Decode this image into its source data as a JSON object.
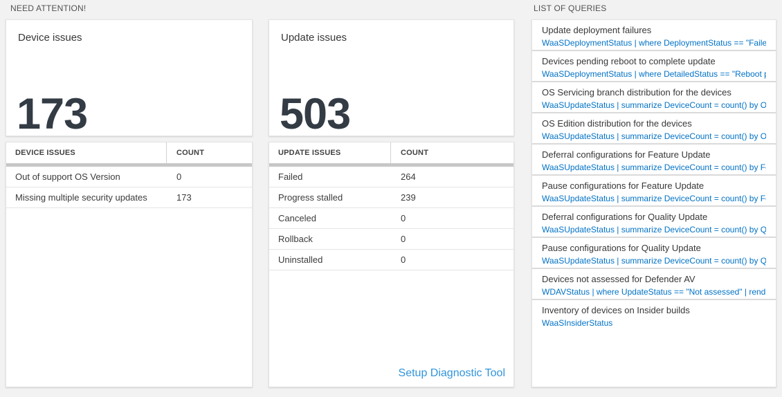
{
  "headers": {
    "need_attention": "NEED ATTENTION!",
    "list_of_queries": "LIST OF QUERIES"
  },
  "device_issues": {
    "title": "Device issues",
    "total": "173",
    "table": {
      "columns": [
        "DEVICE ISSUES",
        "COUNT"
      ],
      "rows": [
        {
          "issue": "Out of support OS Version",
          "count": "0"
        },
        {
          "issue": "Missing multiple security updates",
          "count": "173"
        }
      ]
    }
  },
  "update_issues": {
    "title": "Update issues",
    "total": "503",
    "table": {
      "columns": [
        "UPDATE ISSUES",
        "COUNT"
      ],
      "rows": [
        {
          "issue": "Failed",
          "count": "264"
        },
        {
          "issue": "Progress stalled",
          "count": "239"
        },
        {
          "issue": "Canceled",
          "count": "0"
        },
        {
          "issue": "Rollback",
          "count": "0"
        },
        {
          "issue": "Uninstalled",
          "count": "0"
        }
      ]
    },
    "setup_link": "Setup Diagnostic Tool"
  },
  "queries": {
    "items": [
      {
        "title": "Update deployment failures",
        "query": "WaaSDeploymentStatus | where DeploymentStatus == \"Failed\" |..."
      },
      {
        "title": "Devices pending reboot to complete update",
        "query": "WaaSDeploymentStatus | where DetailedStatus == \"Reboot pend..."
      },
      {
        "title": "OS Servicing branch distribution for the devices",
        "query": "WaaSUpdateStatus | summarize DeviceCount = count() by OSSer..."
      },
      {
        "title": "OS Edition distribution for the devices",
        "query": "WaaSUpdateStatus | summarize DeviceCount = count() by OSEdit..."
      },
      {
        "title": "Deferral configurations for Feature Update",
        "query": "WaaSUpdateStatus | summarize DeviceCount = count() by Featur..."
      },
      {
        "title": "Pause configurations for Feature Update",
        "query": "WaaSUpdateStatus | summarize DeviceCount = count() by Featur..."
      },
      {
        "title": "Deferral configurations for Quality Update",
        "query": "WaaSUpdateStatus | summarize DeviceCount = count() by Qualit..."
      },
      {
        "title": "Pause configurations for Quality Update",
        "query": "WaaSUpdateStatus | summarize DeviceCount = count() by Qualit..."
      },
      {
        "title": "Devices not assessed for Defender AV",
        "query": "WDAVStatus | where UpdateStatus == \"Not assessed\" | render ta..."
      },
      {
        "title": "Inventory of devices on Insider builds",
        "query": "WaaSInsiderStatus"
      }
    ]
  },
  "colors": {
    "background": "#f2f2f2",
    "number_text": "#333b44",
    "query_link_blue": "#0072c6",
    "setup_link_blue": "#3194da",
    "grid_thick_bar": "#c7c7c7"
  }
}
